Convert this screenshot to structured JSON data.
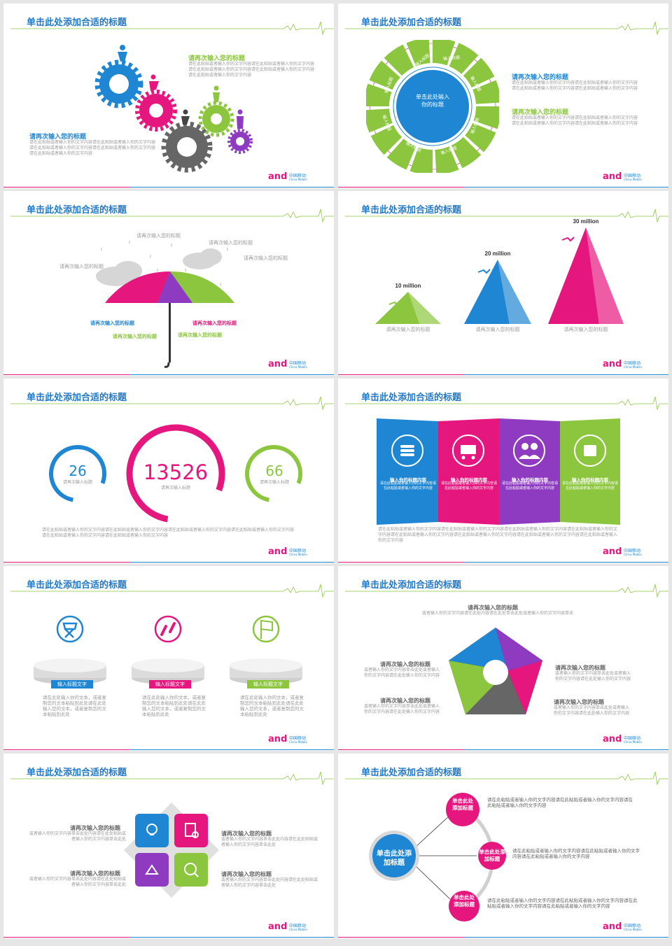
{
  "common": {
    "slide_title": "单击此处添加合适的标题",
    "logo_text": "中国移动",
    "logo_sub": "China Mobile",
    "brand_mark": "and"
  },
  "colors": {
    "blue": "#1f86d3",
    "green": "#8cc63f",
    "magenta": "#e5177e",
    "purple": "#8e3bc2",
    "gray": "#666666",
    "title": "#1f79c9"
  },
  "slide1": {
    "heading_a": "请再次输入您的标题",
    "body_a": "请在此粘贴或者输入你的文字内容请在此粘贴或者输入你的文字内容请在此粘贴或者输入你的文字内容请在此粘贴或者输入你的文字内容请在此粘贴或者输入你的文字内容",
    "heading_b": "请再次输入您的标题",
    "body_b": "请在此粘贴或者输入你的文字内容请在此粘贴或者输入你的文字内容请在此粘贴或者输入你的文字内容请在此粘贴或者输入你的文字内容请在此粘贴或者输入你的文字内容"
  },
  "slide2": {
    "center_text": "单击此处输入你的标题",
    "segment_label": "输入标题",
    "heading_a": "请再次输入您的标题",
    "body_a": "请在此粘贴或者输入你的文字内容请在此粘贴或者输入你的文字内容请在此粘贴或者输入你的文字内容请在此粘贴或者输入你的文字内容",
    "heading_b": "请再次输入您的标题",
    "body_b": "请在此粘贴或者输入你的文字内容请在此粘贴或者输入你的文字内容请在此粘贴或者输入你的文字内容请在此粘贴或者输入你的文字内容"
  },
  "slide3": {
    "cloud_labels": [
      "请再次输入您的标题",
      "请再次输入您的标题",
      "请再次输入您的标题",
      "请再次输入您的标题"
    ],
    "umbrella_labels": [
      "请再次输入您的标题",
      "请再次输入您的标题",
      "请再次输入您的标题",
      "请再次输入您的标题"
    ]
  },
  "slide4": {
    "chart_data": {
      "type": "bar",
      "categories": [
        "请再次输入您的标题",
        "请再次输入您的标题",
        "请再次输入您的标题"
      ],
      "values": [
        10,
        20,
        30
      ],
      "value_labels": [
        "10 million",
        "20 million",
        "30 million"
      ],
      "colors": [
        "#8cc63f",
        "#1f86d3",
        "#e5177e"
      ]
    }
  },
  "slide5": {
    "stats": [
      {
        "value": "26",
        "label": "请再次输入标题",
        "fraction": 0.78,
        "color": "#1f86d3"
      },
      {
        "value": "13526",
        "label": "请再次输入标题",
        "fraction": 0.78,
        "color": "#e5177e"
      },
      {
        "value": "66",
        "label": "请再次输入标题",
        "fraction": 0.78,
        "color": "#8cc63f"
      }
    ],
    "body": "请在此粘贴或者输入你的文字内容请在此粘贴或者输入你的文字内容请在此粘贴或者输入你的文字内容请在此粘贴或者输入你的文字内容请在此粘贴或者输入你的文字内容请在此粘贴或者输入你的文字内容"
  },
  "slide6": {
    "panels": [
      {
        "title": "输入你的标题内容",
        "icon": "coins-icon",
        "color": "#1f86d3"
      },
      {
        "title": "输入你的标题内容",
        "icon": "luggage-cart-icon",
        "color": "#e5177e"
      },
      {
        "title": "输入你的标题内容",
        "icon": "users-icon",
        "color": "#8e3bc2"
      },
      {
        "title": "输入你的标题内容",
        "icon": "money-bag-icon",
        "color": "#8cc63f"
      }
    ],
    "panel_body": "请在此粘贴或者输入你的文字内容请在此粘贴或者输入你的文字内容",
    "body": "请在此粘贴或者输入你的文字内容请在此粘贴或者输入你的文字内容请在此粘贴或者输入你的文字内容请在此粘贴或者输入你的文字内容请在此粘贴或者输入你的文字内容请在此粘贴或者输入你的文字内容请在此粘贴或者输入你的文字内容请在此粘贴或者输入你的文字内容"
  },
  "slide7": {
    "items": [
      {
        "button": "输入标题文字",
        "icon": "directors-chair-icon",
        "color": "#1f86d3",
        "body": "请在此处输入你的文本，或者复制您的文本粘贴到此处请在此处输入您的文本，或者复制您的文本粘贴到此处"
      },
      {
        "button": "输入标题文字",
        "icon": "broken-link-icon",
        "color": "#e5177e",
        "body": "请在此处输入你的文本，或者复制您的文本粘贴到此处请在此处输入您的文本，或者复制您的文本粘贴到此处"
      },
      {
        "button": "输入标题文字",
        "icon": "finish-flag-icon",
        "color": "#8cc63f",
        "body": "请在此处输入你的文本，或者复制您的文本粘贴到此处请在此处输入您的文本，或者复制您的文本粘贴到此处"
      }
    ]
  },
  "slide8": {
    "top": {
      "heading": "请再次输入您的标题",
      "body": "或者输入你的文字内容请在此处内容请在此处单击此处或者输入你的文字内容单击此处"
    },
    "left": [
      {
        "heading": "请再次输入您的标题",
        "body": "或者输入你的文字内容单击此处或者输入你的文字内容请在此处输入你的文字内容单击此处"
      },
      {
        "heading": "请再次输入您的标题",
        "body": "或者输入你的文字内容单击此处或者输入你的文字内容请在此处输入你的文字内容单击此处"
      }
    ],
    "right": [
      {
        "heading": "请再次输入您的标题",
        "body": "或者输入你的文字内容单击此处或者输入你的文字内容请在此处输入你的文字内容单击此处"
      },
      {
        "heading": "请再次输入您的标题",
        "body": "或者输入你的文字内容单击此处或者输入你的文字内容请在此处输入你的文字内容单击此处"
      }
    ]
  },
  "slide9": {
    "left": [
      {
        "heading": "请再次输入您的标题",
        "body": "或者输入你的文字内容单击此处内容请在此处粘贴或者输入你的文字内容单击此处"
      },
      {
        "heading": "请再次输入您的标题",
        "body": "或者输入你的文字内容单击此处内容请在此处粘贴或者输入你的文字内容单击此处"
      }
    ],
    "right": [
      {
        "heading": "请再次输入您的标题",
        "body": "或者输入你的文字内容单击此处内容请在此处粘贴或者输入你的文字内容单击此处"
      },
      {
        "heading": "请再次输入您的标题",
        "body": "或者输入你的文字内容单击此处内容请在此处粘贴或者输入你的文字内容单击此处"
      }
    ]
  },
  "slide10": {
    "center": "单击此处添加标题",
    "nodes": [
      "单击此处添加标题",
      "单击此处添加标题",
      "单击此处添加标题"
    ],
    "bodies": [
      "请在此粘贴或者输入你的文字内容请在此粘贴或者输入你的文字内容请在此粘贴或者输入你的文字内容",
      "请在此粘贴或者输入你的文字内容请在此粘贴或者输入你的文字内容请在此粘贴或者输入你的文字内容",
      "请在此粘贴或者输入你的文字内容请在此粘贴或者输入你的文字内容请在此粘贴或者输入你的文字内容请在此粘贴或者输入你的文字内容"
    ]
  }
}
